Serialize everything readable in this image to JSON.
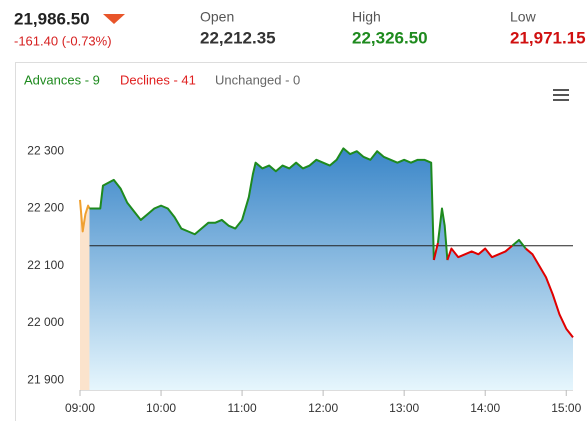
{
  "header": {
    "price": "21,986.50",
    "change": "-161.40 (-0.73%)",
    "open": {
      "label": "Open",
      "value": "22,212.35"
    },
    "high": {
      "label": "High",
      "value": "22,326.50"
    },
    "low": {
      "label": "Low",
      "value": "21,971.15"
    }
  },
  "legend": {
    "advances": "Advances - 9",
    "declines": "Declines - 41",
    "unchanged": "Unchanged - 0"
  },
  "chart_data": {
    "type": "line",
    "x": [
      "09:00",
      "09:02",
      "09:04",
      "09:06",
      "09:07",
      "09:15",
      "09:17",
      "09:25",
      "09:30",
      "09:35",
      "09:40",
      "09:45",
      "09:50",
      "09:55",
      "10:00",
      "10:05",
      "10:10",
      "10:15",
      "10:20",
      "10:25",
      "10:30",
      "10:35",
      "10:40",
      "10:45",
      "10:50",
      "10:55",
      "11:00",
      "11:05",
      "11:08",
      "11:10",
      "11:15",
      "11:20",
      "11:25",
      "11:30",
      "11:35",
      "11:40",
      "11:45",
      "11:50",
      "11:55",
      "12:00",
      "12:05",
      "12:10",
      "12:15",
      "12:20",
      "12:25",
      "12:30",
      "12:35",
      "12:40",
      "12:45",
      "12:50",
      "12:55",
      "13:00",
      "13:05",
      "13:10",
      "13:15",
      "13:20",
      "13:22",
      "13:25",
      "13:28",
      "13:30",
      "13:32",
      "13:35",
      "13:40",
      "13:45",
      "13:50",
      "13:55",
      "14:00",
      "14:05",
      "14:10",
      "14:15",
      "14:20",
      "14:25",
      "14:30",
      "14:35",
      "14:40",
      "14:45",
      "14:50",
      "14:55",
      "15:00",
      "15:05"
    ],
    "series": [
      {
        "color": "#f0a030",
        "area_color": "#fbe3cc",
        "values": [
          22215,
          22160,
          22190,
          22205,
          22200,
          null,
          null,
          null,
          null,
          null,
          null,
          null,
          null,
          null,
          null,
          null,
          null,
          null,
          null,
          null,
          null,
          null,
          null,
          null,
          null,
          null,
          null,
          null,
          null,
          null,
          null,
          null,
          null,
          null,
          null,
          null,
          null,
          null,
          null,
          null,
          null,
          null,
          null,
          null,
          null,
          null,
          null,
          null,
          null,
          null,
          null,
          null,
          null,
          null,
          null,
          null,
          null,
          null,
          null,
          null,
          null,
          null,
          null,
          null,
          null,
          null,
          null,
          null,
          null,
          null,
          null,
          null,
          null,
          null,
          null,
          null,
          null,
          null,
          null,
          null
        ]
      },
      {
        "color_above": "#1e8a1e",
        "color_below": "#e00000",
        "area_top": "#3a86c8",
        "area_bottom": "#e6f6fd",
        "values": [
          null,
          null,
          null,
          null,
          22200,
          22200,
          22240,
          22250,
          22235,
          22210,
          22195,
          22180,
          22190,
          22200,
          22205,
          22200,
          22185,
          22165,
          22160,
          22155,
          22165,
          22175,
          22175,
          22180,
          22170,
          22165,
          22180,
          22220,
          22260,
          22280,
          22270,
          22275,
          22265,
          22275,
          22270,
          22280,
          22270,
          22275,
          22285,
          22280,
          22275,
          22285,
          22305,
          22295,
          22300,
          22290,
          22285,
          22300,
          22290,
          22285,
          22280,
          22285,
          22280,
          22285,
          22285,
          22280,
          22110,
          22140,
          22200,
          22170,
          22110,
          22130,
          22115,
          22120,
          22125,
          22120,
          22130,
          22115,
          22120,
          22125,
          22135,
          22145,
          22130,
          22120,
          22100,
          22080,
          22050,
          22015,
          21990,
          21975
        ]
      }
    ],
    "reference_value": 22135,
    "xlim": [
      "09:00",
      "15:05"
    ],
    "xticks": [
      "09:00",
      "10:00",
      "11:00",
      "12:00",
      "13:00",
      "14:00",
      "15:00"
    ],
    "ylim": [
      21883,
      22372
    ],
    "yticks": [
      {
        "value": 21900,
        "label": "21 900"
      },
      {
        "value": 22000,
        "label": "22 000"
      },
      {
        "value": 22100,
        "label": "22 100"
      },
      {
        "value": 22200,
        "label": "22 200"
      },
      {
        "value": 22300,
        "label": "22 300"
      }
    ]
  }
}
